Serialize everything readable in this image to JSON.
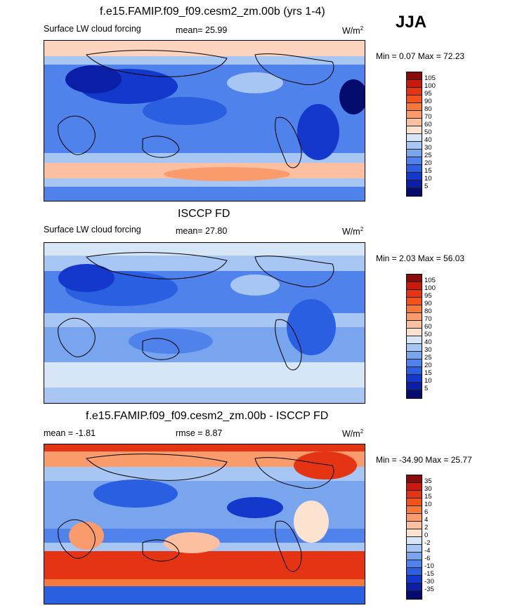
{
  "season": "JJA",
  "panels": [
    {
      "title": "f.e15.FAMIP.f09_f09.cesm2_zm.00b (yrs 1-4)",
      "left_label": "Surface LW cloud forcing",
      "mid_label": "mean=  25.99",
      "units": "W/m",
      "units_sup": "2",
      "minmax": "Min =   0.07 Max =  72.23",
      "colorbar": {
        "labels": [
          "105",
          "100",
          "95",
          "90",
          "80",
          "70",
          "60",
          "50",
          "40",
          "30",
          "25",
          "20",
          "15",
          "10",
          "5"
        ],
        "colors": [
          "#8b0a0a",
          "#c81a0d",
          "#e43413",
          "#f0541b",
          "#f57a3a",
          "#fa9b6b",
          "#fcbfa0",
          "#fde2cf",
          "#d6e6f7",
          "#a8c6f4",
          "#79a5ef",
          "#4f82ea",
          "#2a5fe2",
          "#1438cc",
          "#0a1ea8",
          "#040c6e"
        ]
      }
    },
    {
      "title": "ISCCP FD",
      "left_label": "Surface LW cloud forcing",
      "mid_label": "mean=  27.80",
      "units": "W/m",
      "units_sup": "2",
      "minmax": "Min =   2.03 Max =  56.03",
      "colorbar": {
        "labels": [
          "105",
          "100",
          "95",
          "90",
          "80",
          "70",
          "60",
          "50",
          "40",
          "30",
          "25",
          "20",
          "15",
          "10",
          "5"
        ],
        "colors": [
          "#8b0a0a",
          "#c81a0d",
          "#e43413",
          "#f0541b",
          "#f57a3a",
          "#fa9b6b",
          "#fcbfa0",
          "#fde2cf",
          "#d6e6f7",
          "#a8c6f4",
          "#79a5ef",
          "#4f82ea",
          "#2a5fe2",
          "#1438cc",
          "#0a1ea8",
          "#040c6e"
        ]
      }
    },
    {
      "title": "f.e15.FAMIP.f09_f09.cesm2_zm.00b - ISCCP FD",
      "left_label": "mean =  -1.81",
      "mid_label": "rmse =   8.87",
      "units": "W/m",
      "units_sup": "2",
      "minmax": "Min = -34.90 Max =  25.77",
      "colorbar": {
        "labels": [
          "35",
          "30",
          "15",
          "10",
          "6",
          "4",
          "2",
          "0",
          "-2",
          "-4",
          "-6",
          "-10",
          "-15",
          "-30",
          "-35"
        ],
        "colors": [
          "#8b0a0a",
          "#c81a0d",
          "#e43413",
          "#f0541b",
          "#f57a3a",
          "#fa9b6b",
          "#fcbfa0",
          "#fde2cf",
          "#d6e6f7",
          "#a8c6f4",
          "#79a5ef",
          "#4f82ea",
          "#2a5fe2",
          "#1438cc",
          "#0a1ea8",
          "#040c6e"
        ]
      }
    }
  ]
}
